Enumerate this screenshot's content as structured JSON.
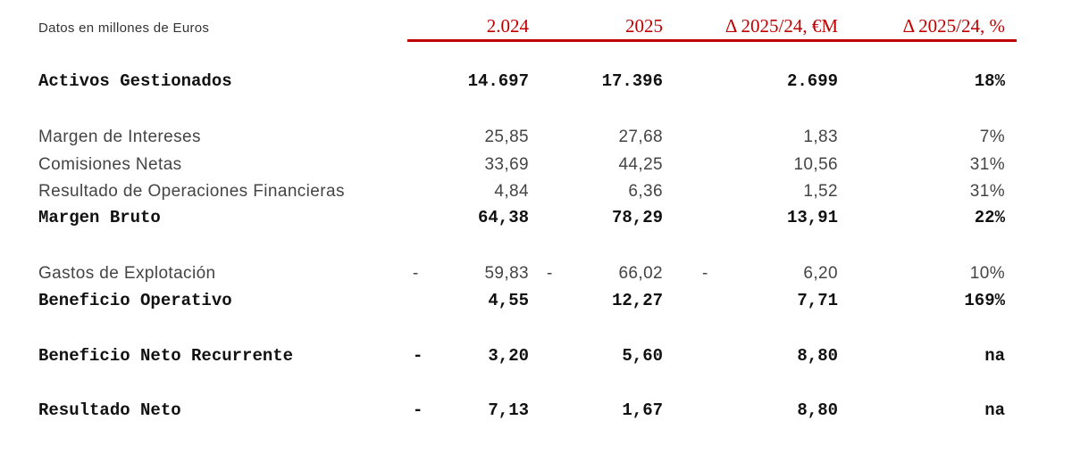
{
  "header": {
    "note": "Datos en millones de Euros",
    "columns": [
      "2.024",
      "2025",
      "Δ 2025/24, €M",
      "Δ 2025/24, %"
    ],
    "accent_color": "#c00000"
  },
  "rows": [
    {
      "label": "Activos Gestionados",
      "bold": true,
      "neg": [
        "",
        "",
        ""
      ],
      "values": [
        "14.697",
        "17.396",
        "2.699",
        "18%"
      ]
    },
    {
      "label": "Margen de Intereses",
      "bold": false,
      "neg": [
        "",
        "",
        ""
      ],
      "values": [
        "25,85",
        "27,68",
        "1,83",
        "7%"
      ]
    },
    {
      "label": "Comisiones Netas",
      "bold": false,
      "neg": [
        "",
        "",
        ""
      ],
      "values": [
        "33,69",
        "44,25",
        "10,56",
        "31%"
      ]
    },
    {
      "label": "Resultado de Operaciones Financieras",
      "bold": false,
      "neg": [
        "",
        "",
        ""
      ],
      "values": [
        "4,84",
        "6,36",
        "1,52",
        "31%"
      ]
    },
    {
      "label": "Margen Bruto",
      "bold": true,
      "neg": [
        "",
        "",
        ""
      ],
      "values": [
        "64,38",
        "78,29",
        "13,91",
        "22%"
      ]
    },
    {
      "label": "Gastos de Explotación",
      "bold": false,
      "neg": [
        "-",
        "-",
        "-"
      ],
      "values": [
        "59,83",
        "66,02",
        "6,20",
        "10%"
      ]
    },
    {
      "label": "Beneficio Operativo",
      "bold": true,
      "neg": [
        "",
        "",
        ""
      ],
      "values": [
        "4,55",
        "12,27",
        "7,71",
        "169%"
      ]
    },
    {
      "label": "Beneficio Neto Recurrente",
      "bold": true,
      "neg": [
        "-",
        "",
        ""
      ],
      "values": [
        "3,20",
        "5,60",
        "8,80",
        "na"
      ]
    },
    {
      "label": "Resultado Neto",
      "bold": true,
      "neg": [
        "-",
        "",
        ""
      ],
      "values": [
        "7,13",
        "1,67",
        "8,80",
        "na"
      ]
    }
  ]
}
